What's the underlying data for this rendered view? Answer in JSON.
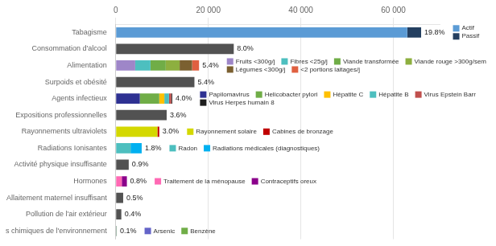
{
  "chart_data": {
    "type": "bar",
    "orientation": "horizontal",
    "stacked": true,
    "grid": "x",
    "categories": [
      "Tabagisme",
      "Consommation d'alcool",
      "Alimentation",
      "Surpoids et obésité",
      "Agents infectieux",
      "Expositions professionnelles",
      "Rayonnements ultraviolets",
      "Radiations Ionisantes",
      "Activité physique insuffisante",
      "Hormones",
      "Allaitement maternel insuffisant",
      "Pollution de l'air extérieur",
      "s chimiques de l'environnement"
    ],
    "series": [
      {
        "name": "Actif",
        "color": "#5B9BD5",
        "values": [
          63000,
          null,
          null,
          null,
          null,
          null,
          null,
          null,
          null,
          null,
          null,
          null,
          null
        ]
      },
      {
        "name": "Passif",
        "color": "#243F60",
        "values": [
          3000,
          null,
          null,
          null,
          null,
          null,
          null,
          null,
          null,
          null,
          null,
          null,
          null
        ]
      },
      {
        "color": "#525252",
        "values": [
          null,
          25500,
          null,
          17000,
          null,
          11000,
          null,
          null,
          2800,
          null,
          1600,
          1200,
          null
        ]
      },
      {
        "name": "Fruits <300g/j",
        "color": "#9E86C8",
        "values": [
          null,
          null,
          4200,
          null,
          null,
          null,
          null,
          null,
          null,
          null,
          null,
          null,
          null
        ]
      },
      {
        "name": "Fibres <25g/j",
        "color": "#4DBFBF",
        "values": [
          null,
          null,
          3300,
          null,
          null,
          null,
          null,
          null,
          null,
          null,
          null,
          null,
          null
        ]
      },
      {
        "name": "Viande transformée",
        "color": "#70AD47",
        "values": [
          null,
          null,
          3300,
          null,
          null,
          null,
          null,
          null,
          null,
          null,
          null,
          null,
          null
        ]
      },
      {
        "name": "Viande rouge >300g/sem",
        "color": "#8DAF3F",
        "values": [
          null,
          null,
          3000,
          null,
          null,
          null,
          null,
          null,
          null,
          null,
          null,
          null,
          null
        ]
      },
      {
        "name": "Légumes <300g/j",
        "color": "#7B6030",
        "values": [
          null,
          null,
          2700,
          null,
          null,
          null,
          null,
          null,
          null,
          null,
          null,
          null,
          null
        ]
      },
      {
        "name": "<2 portions laitages/j",
        "color": "#E06040",
        "values": [
          null,
          null,
          1500,
          null,
          null,
          null,
          null,
          null,
          null,
          null,
          null,
          null,
          null
        ]
      },
      {
        "name": "Papilomavirus",
        "color": "#2E3192",
        "values": [
          null,
          null,
          null,
          null,
          5200,
          null,
          null,
          null,
          null,
          null,
          null,
          null,
          null
        ]
      },
      {
        "name": "Helicobacter pylori",
        "color": "#70AD47",
        "values": [
          null,
          null,
          null,
          null,
          4200,
          null,
          null,
          null,
          null,
          null,
          null,
          null,
          null
        ]
      },
      {
        "name": "Hépatite C",
        "color": "#FFC000",
        "values": [
          null,
          null,
          null,
          null,
          1100,
          null,
          null,
          null,
          null,
          null,
          null,
          null,
          null
        ]
      },
      {
        "name": "Hépatite B",
        "color": "#4DBFBF",
        "values": [
          null,
          null,
          null,
          null,
          1000,
          null,
          null,
          null,
          null,
          null,
          null,
          null,
          null
        ]
      },
      {
        "name": "Virus Epstein Barr",
        "color": "#C0504D",
        "values": [
          null,
          null,
          null,
          null,
          500,
          null,
          null,
          null,
          null,
          null,
          null,
          null,
          null
        ]
      },
      {
        "name": "Virus Herpes humain 8",
        "color": "#1C1C1C",
        "values": [
          null,
          null,
          null,
          null,
          200,
          null,
          null,
          null,
          null,
          null,
          null,
          null,
          null
        ]
      },
      {
        "name": "Rayonnement solaire",
        "color": "#D4D800",
        "values": [
          null,
          null,
          null,
          null,
          null,
          null,
          9000,
          null,
          null,
          null,
          null,
          null,
          null
        ]
      },
      {
        "name": "Cabines de bronzage",
        "color": "#C00000",
        "values": [
          null,
          null,
          null,
          null,
          null,
          null,
          400,
          null,
          null,
          null,
          null,
          null,
          null
        ]
      },
      {
        "name": "Radon",
        "color": "#4DBFBF",
        "values": [
          null,
          null,
          null,
          null,
          null,
          null,
          null,
          3200,
          null,
          null,
          null,
          null,
          null
        ]
      },
      {
        "name": "Radiations médicales (diagnostiques)",
        "color": "#00B0F0",
        "values": [
          null,
          null,
          null,
          null,
          null,
          null,
          null,
          2400,
          null,
          null,
          null,
          null,
          null
        ]
      },
      {
        "name": "Traitement de la ménopause",
        "color": "#FF69B4",
        "values": [
          null,
          null,
          null,
          null,
          null,
          null,
          null,
          null,
          null,
          1300,
          null,
          null,
          null
        ]
      },
      {
        "name": "Contraceptifs oreux",
        "color": "#8B008B",
        "values": [
          null,
          null,
          null,
          null,
          null,
          null,
          null,
          null,
          null,
          1100,
          null,
          null,
          null
        ]
      },
      {
        "name": "Arsenic",
        "color": "#6464C8",
        "values": [
          null,
          null,
          null,
          null,
          null,
          null,
          null,
          null,
          null,
          null,
          null,
          null,
          130
        ]
      },
      {
        "name": "Benzène",
        "color": "#70AD47",
        "values": [
          null,
          null,
          null,
          null,
          null,
          null,
          null,
          null,
          null,
          null,
          null,
          null,
          90
        ]
      }
    ],
    "annotations": [
      {
        "category": "Tabagisme",
        "text": "19.8%"
      },
      {
        "category": "Consommation d'alcool",
        "text": "8.0%"
      },
      {
        "category": "Alimentation",
        "text": "5.4%"
      },
      {
        "category": "Surpoids et obésité",
        "text": "5.4%"
      },
      {
        "category": "Agents infectieux",
        "text": "4.0%"
      },
      {
        "category": "Expositions professionnelles",
        "text": "3.6%"
      },
      {
        "category": "Rayonnements ultraviolets",
        "text": "3.0%"
      },
      {
        "category": "Radiations Ionisantes",
        "text": "1.8%"
      },
      {
        "category": "Activité physique insuffisante",
        "text": "0.9%"
      },
      {
        "category": "Hormones",
        "text": "0.8%"
      },
      {
        "category": "Allaitement maternel insuffisant",
        "text": "0.5%"
      },
      {
        "category": "Pollution de l'air extérieur",
        "text": "0.4%"
      },
      {
        "category": "s chimiques de l'environnement",
        "text": "0.1%"
      }
    ],
    "xlim": [
      0,
      70000
    ],
    "xticks": [
      0,
      {
        "value": 20000,
        "label": "20 000"
      },
      {
        "value": 40000,
        "label": "40 000"
      },
      {
        "value": 60000,
        "label": "60 000"
      }
    ]
  }
}
